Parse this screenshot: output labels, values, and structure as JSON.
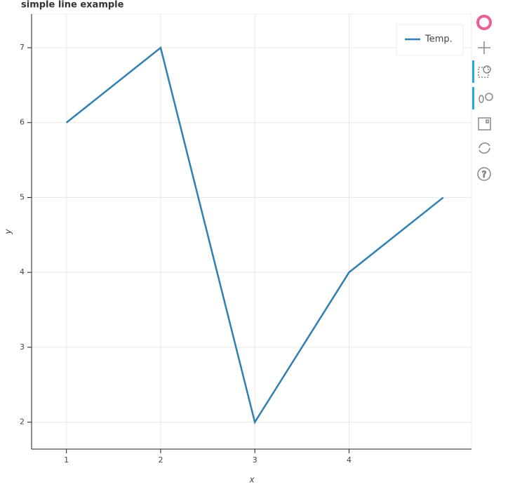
{
  "chart_data": {
    "type": "line",
    "title": "simple line example",
    "x": [
      1,
      2,
      3,
      4,
      5
    ],
    "series": [
      {
        "name": "Temp.",
        "color": "#2f7fb3",
        "values": [
          6,
          7,
          2,
          4,
          5
        ]
      }
    ],
    "x_label": "x",
    "y_label": "y",
    "xlim": [
      0.63,
      5.3
    ],
    "ylim": [
      1.64,
      7.45
    ],
    "xticks": [
      1,
      2,
      3,
      4
    ],
    "yticks": [
      2,
      3,
      4,
      5,
      6,
      7
    ],
    "grid": true,
    "legend": "top-right"
  }
}
